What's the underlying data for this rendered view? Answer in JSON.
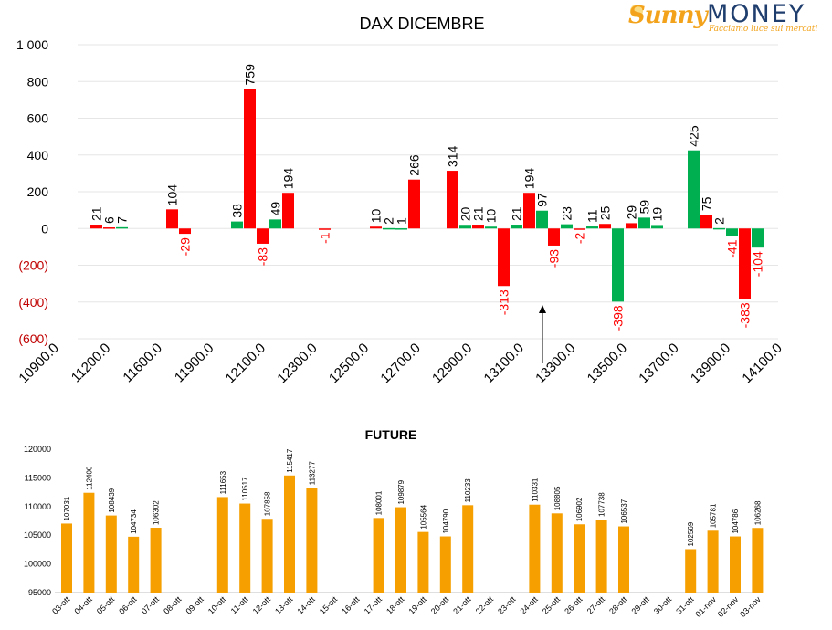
{
  "logo": {
    "brand_a": "Sunny",
    "brand_b": "MONEY",
    "tagline": "Facciamo luce sui mercati"
  },
  "colors": {
    "positive": "#00b050",
    "negative": "#ff0000",
    "future": "#f59f00",
    "grid": "#e6e6e6"
  },
  "chart_data": [
    {
      "type": "bar",
      "title": "DAX DICEMBRE",
      "ylim": [
        -600,
        1000
      ],
      "yticks": [
        1000,
        800,
        600,
        400,
        200,
        0,
        -200,
        -400,
        -600
      ],
      "ytick_labels": [
        "1 000",
        "800",
        "600",
        "400",
        "200",
        "0",
        "(200)",
        "(400)",
        "(600)"
      ],
      "x_tick_labels": [
        "10900.0",
        "11200.0",
        "11600.0",
        "11900.0",
        "12100.0",
        "12300.0",
        "12500.0",
        "12700.0",
        "12900.0",
        "13100.0",
        "13300.0",
        "13500.0",
        "13700.0",
        "13900.0",
        "14100.0"
      ],
      "grid": true,
      "annotation": "arrow pointing up at 13300.0",
      "bars": [
        {
          "group": 0,
          "color": "red",
          "value": 21
        },
        {
          "group": 0,
          "color": "red",
          "value": 6
        },
        {
          "group": 0,
          "color": "green",
          "value": 7
        },
        {
          "group": 1,
          "color": "red",
          "value": 104
        },
        {
          "group": 1,
          "color": "red",
          "value": -29
        },
        {
          "group": 2,
          "color": "green",
          "value": 38
        },
        {
          "group": 2,
          "color": "red",
          "value": 759
        },
        {
          "group": 2,
          "color": "red",
          "value": -83
        },
        {
          "group": 2,
          "color": "green",
          "value": 49
        },
        {
          "group": 2,
          "color": "red",
          "value": 194
        },
        {
          "group": 3,
          "color": "red",
          "value": -1
        },
        {
          "group": 4,
          "color": "red",
          "value": 10
        },
        {
          "group": 4,
          "color": "green",
          "value": 2
        },
        {
          "group": 4,
          "color": "green",
          "value": 1
        },
        {
          "group": 4,
          "color": "red",
          "value": 266
        },
        {
          "group": 5,
          "color": "red",
          "value": 314
        },
        {
          "group": 5,
          "color": "green",
          "value": 20
        },
        {
          "group": 5,
          "color": "red",
          "value": 21
        },
        {
          "group": 5,
          "color": "green",
          "value": 10
        },
        {
          "group": 5,
          "color": "red",
          "value": -313
        },
        {
          "group": 5,
          "color": "green",
          "value": 21
        },
        {
          "group": 5,
          "color": "red",
          "value": 194
        },
        {
          "group": 5,
          "color": "green",
          "value": 97
        },
        {
          "group": 6,
          "color": "red",
          "value": -93
        },
        {
          "group": 6,
          "color": "green",
          "value": 23
        },
        {
          "group": 6,
          "color": "red",
          "value": -2
        },
        {
          "group": 6,
          "color": "green",
          "value": 11
        },
        {
          "group": 6,
          "color": "red",
          "value": 25
        },
        {
          "group": 6,
          "color": "green",
          "value": -398
        },
        {
          "group": 7,
          "color": "red",
          "value": 29
        },
        {
          "group": 7,
          "color": "green",
          "value": 59
        },
        {
          "group": 7,
          "color": "green",
          "value": 19
        },
        {
          "group": 8,
          "color": "green",
          "value": 425
        },
        {
          "group": 8,
          "color": "red",
          "value": 75
        },
        {
          "group": 8,
          "color": "green",
          "value": 2
        },
        {
          "group": 8,
          "color": "green",
          "value": -41
        },
        {
          "group": 8,
          "color": "red",
          "value": -383
        },
        {
          "group": 8,
          "color": "green",
          "value": -104
        }
      ]
    },
    {
      "type": "bar",
      "title": "FUTURE",
      "ylim": [
        95000,
        120000
      ],
      "yticks": [
        120000,
        115000,
        110000,
        105000,
        100000,
        95000
      ],
      "categories": [
        "03-ott",
        "04-ott",
        "05-ott",
        "06-ott",
        "07-ott",
        "08-ott",
        "09-ott",
        "10-ott",
        "11-ott",
        "12-ott",
        "13-ott",
        "14-ott",
        "15-ott",
        "16-ott",
        "17-ott",
        "18-ott",
        "19-ott",
        "20-ott",
        "21-ott",
        "22-ott",
        "23-ott",
        "24-ott",
        "25-ott",
        "26-ott",
        "27-ott",
        "28-ott",
        "29-ott",
        "30-ott",
        "31-ott",
        "01-nov",
        "02-nov",
        "03-nov"
      ],
      "values": [
        107031,
        112400,
        108439,
        104734,
        106302,
        null,
        null,
        111653,
        110517,
        107858,
        115417,
        113277,
        null,
        null,
        108001,
        109879,
        105564,
        104790,
        110233,
        null,
        null,
        110331,
        108805,
        106902,
        107738,
        106537,
        null,
        null,
        102569,
        105781,
        104786,
        106268
      ],
      "grid": false
    }
  ]
}
